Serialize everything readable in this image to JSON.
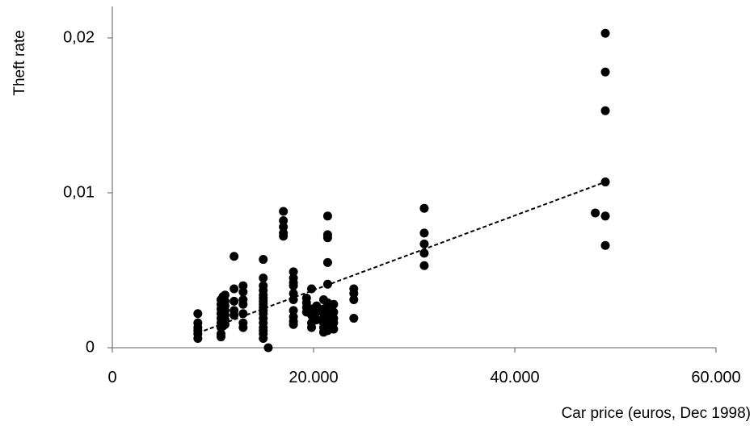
{
  "chart_data": {
    "type": "scatter",
    "title": "",
    "xlabel": "Car price (euros, Dec 1998)",
    "ylabel": "Theft rate",
    "xlim": [
      0,
      60000
    ],
    "ylim": [
      0,
      0.02
    ],
    "x_ticks": [
      0,
      20000,
      40000,
      60000
    ],
    "x_tick_labels": [
      "0",
      "20.000",
      "40.000",
      "60.000"
    ],
    "y_ticks": [
      0,
      0.01,
      0.02
    ],
    "y_tick_labels": [
      "0",
      "0,01",
      "0,02"
    ],
    "grid": false,
    "legend": "none",
    "marker_color": "#000000",
    "trendline": {
      "style": "dashed",
      "x": [
        8500,
        49000
      ],
      "y": [
        0.00095,
        0.0107
      ]
    },
    "series": [
      {
        "points": [
          [
            8500,
            0.0022
          ],
          [
            8500,
            0.0016
          ],
          [
            8500,
            0.0013
          ],
          [
            8500,
            0.0011
          ],
          [
            8500,
            0.0009
          ],
          [
            8500,
            0.0006
          ],
          [
            10800,
            0.0031
          ],
          [
            10800,
            0.0028
          ],
          [
            10800,
            0.0025
          ],
          [
            10800,
            0.0022
          ],
          [
            10800,
            0.0019
          ],
          [
            10800,
            0.0016
          ],
          [
            10800,
            0.0013
          ],
          [
            10800,
            0.0009
          ],
          [
            10800,
            0.0007
          ],
          [
            11000,
            0.0033
          ],
          [
            11000,
            0.0029
          ],
          [
            11000,
            0.0026
          ],
          [
            11000,
            0.0023
          ],
          [
            11000,
            0.002
          ],
          [
            11000,
            0.0017
          ],
          [
            11000,
            0.0014
          ],
          [
            11200,
            0.0034
          ],
          [
            11200,
            0.003
          ],
          [
            11200,
            0.0027
          ],
          [
            11200,
            0.0024
          ],
          [
            11200,
            0.0021
          ],
          [
            11200,
            0.0018
          ],
          [
            11200,
            0.0015
          ],
          [
            12100,
            0.0059
          ],
          [
            12100,
            0.0038
          ],
          [
            12100,
            0.003
          ],
          [
            12100,
            0.0024
          ],
          [
            12100,
            0.0021
          ],
          [
            13000,
            0.004
          ],
          [
            13000,
            0.0036
          ],
          [
            13000,
            0.0031
          ],
          [
            13000,
            0.0028
          ],
          [
            13000,
            0.0022
          ],
          [
            13000,
            0.0016
          ],
          [
            13000,
            0.0013
          ],
          [
            15000,
            0.0057
          ],
          [
            15000,
            0.0045
          ],
          [
            15000,
            0.004
          ],
          [
            15000,
            0.0037
          ],
          [
            15000,
            0.0034
          ],
          [
            15000,
            0.0032
          ],
          [
            15000,
            0.003
          ],
          [
            15000,
            0.0028
          ],
          [
            15000,
            0.0026
          ],
          [
            15000,
            0.0024
          ],
          [
            15000,
            0.0022
          ],
          [
            15000,
            0.0019
          ],
          [
            15000,
            0.0016
          ],
          [
            15000,
            0.0013
          ],
          [
            15000,
            0.0011
          ],
          [
            15000,
            0.0009
          ],
          [
            15000,
            0.0006
          ],
          [
            15500,
            0.0
          ],
          [
            17000,
            0.0088
          ],
          [
            17000,
            0.0082
          ],
          [
            17000,
            0.0078
          ],
          [
            17000,
            0.0074
          ],
          [
            17000,
            0.0072
          ],
          [
            18000,
            0.0049
          ],
          [
            18000,
            0.0045
          ],
          [
            18000,
            0.0042
          ],
          [
            18000,
            0.004
          ],
          [
            18000,
            0.0035
          ],
          [
            18000,
            0.0031
          ],
          [
            18000,
            0.0024
          ],
          [
            18000,
            0.002
          ],
          [
            18000,
            0.0017
          ],
          [
            18000,
            0.0015
          ],
          [
            19300,
            0.0032
          ],
          [
            19300,
            0.0029
          ],
          [
            19300,
            0.0026
          ],
          [
            19300,
            0.0023
          ],
          [
            19800,
            0.0038
          ],
          [
            19800,
            0.0025
          ],
          [
            19800,
            0.0021
          ],
          [
            19800,
            0.0016
          ],
          [
            19800,
            0.0013
          ],
          [
            20300,
            0.0027
          ],
          [
            20300,
            0.0023
          ],
          [
            20300,
            0.0018
          ],
          [
            21000,
            0.0031
          ],
          [
            21000,
            0.0025
          ],
          [
            21000,
            0.0022
          ],
          [
            21000,
            0.0019
          ],
          [
            21000,
            0.0016
          ],
          [
            21000,
            0.0013
          ],
          [
            21000,
            0.001
          ],
          [
            21400,
            0.0085
          ],
          [
            21400,
            0.0073
          ],
          [
            21400,
            0.0071
          ],
          [
            21400,
            0.0055
          ],
          [
            21400,
            0.0041
          ],
          [
            21400,
            0.0029
          ],
          [
            21400,
            0.0024
          ],
          [
            21400,
            0.002
          ],
          [
            21400,
            0.0017
          ],
          [
            21400,
            0.0014
          ],
          [
            21400,
            0.0011
          ],
          [
            22000,
            0.0028
          ],
          [
            22000,
            0.0023
          ],
          [
            22000,
            0.0019
          ],
          [
            22000,
            0.0016
          ],
          [
            22000,
            0.0012
          ],
          [
            24000,
            0.0038
          ],
          [
            24000,
            0.0035
          ],
          [
            24000,
            0.0031
          ],
          [
            24000,
            0.0019
          ],
          [
            31000,
            0.009
          ],
          [
            31000,
            0.0074
          ],
          [
            31000,
            0.0067
          ],
          [
            31000,
            0.0061
          ],
          [
            31000,
            0.0053
          ],
          [
            48000,
            0.0087
          ],
          [
            49000,
            0.0203
          ],
          [
            49000,
            0.0178
          ],
          [
            49000,
            0.0153
          ],
          [
            49000,
            0.0107
          ],
          [
            49000,
            0.0085
          ],
          [
            49000,
            0.0066
          ]
        ]
      }
    ]
  }
}
